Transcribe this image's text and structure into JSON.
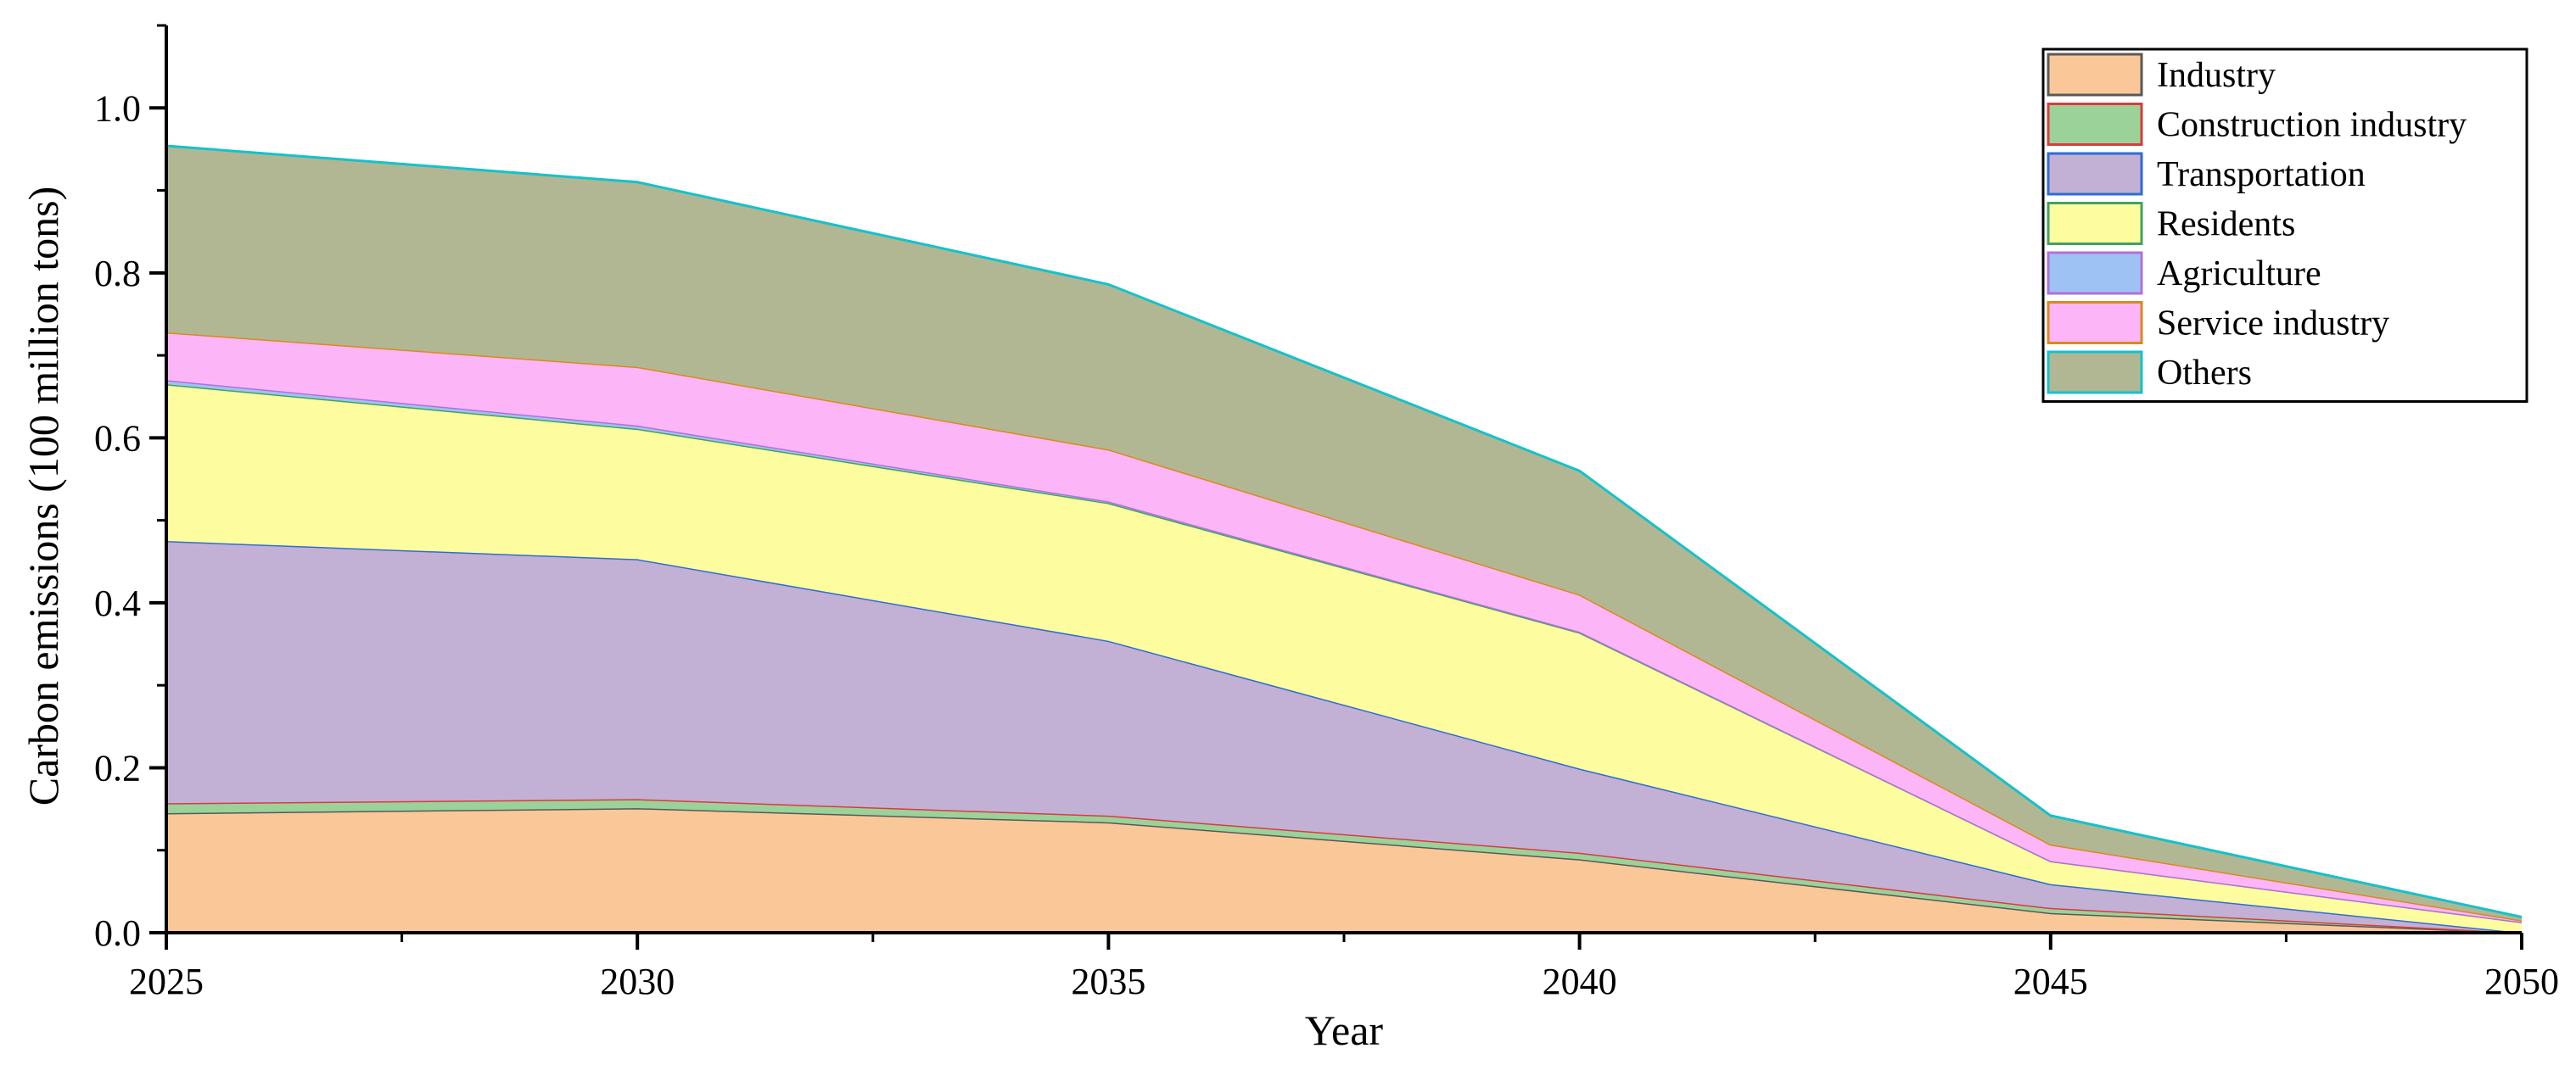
{
  "chart_data": {
    "type": "area",
    "stacked": true,
    "title": "",
    "xlabel": "Year",
    "ylabel": "Carbon emissions (100 million tons)",
    "x": [
      2025,
      2030,
      2035,
      2040,
      2045,
      2050
    ],
    "xlim": [
      2025,
      2050
    ],
    "ylim": [
      0,
      1.1
    ],
    "x_ticks": [
      "2025",
      "2030",
      "2035",
      "2040",
      "2045",
      "2050"
    ],
    "y_ticks": [
      "0.0",
      "0.2",
      "0.4",
      "0.6",
      "0.8",
      "1.0"
    ],
    "grid": false,
    "legend_position": "top-right",
    "series": [
      {
        "name": "Industry",
        "values": [
          0.145,
          0.151,
          0.134,
          0.089,
          0.024,
          0.0
        ],
        "fill": "#FAC898",
        "stroke": "#595959"
      },
      {
        "name": "Construction industry",
        "values": [
          0.012,
          0.011,
          0.008,
          0.008,
          0.006,
          0.0
        ],
        "fill": "#9AD29A",
        "stroke": "#D93C3C"
      },
      {
        "name": "Transportation",
        "values": [
          0.318,
          0.291,
          0.212,
          0.102,
          0.029,
          0.0
        ],
        "fill": "#C2B0D5",
        "stroke": "#2F6DD0"
      },
      {
        "name": "Residents",
        "values": [
          0.19,
          0.158,
          0.167,
          0.165,
          0.028,
          0.013
        ],
        "fill": "#FDFDA0",
        "stroke": "#3FA35F"
      },
      {
        "name": "Agriculture",
        "values": [
          0.005,
          0.004,
          0.002,
          0.001,
          0.0,
          0.0
        ],
        "fill": "#9FC2F4",
        "stroke": "#B071D8"
      },
      {
        "name": "Service industry",
        "values": [
          0.058,
          0.071,
          0.063,
          0.045,
          0.02,
          0.002
        ],
        "fill": "#FCB6F7",
        "stroke": "#D98A1E"
      },
      {
        "name": "Others",
        "values": [
          0.226,
          0.224,
          0.2,
          0.15,
          0.035,
          0.004
        ],
        "fill": "#B2B793",
        "stroke": "#14C2CC"
      }
    ]
  }
}
